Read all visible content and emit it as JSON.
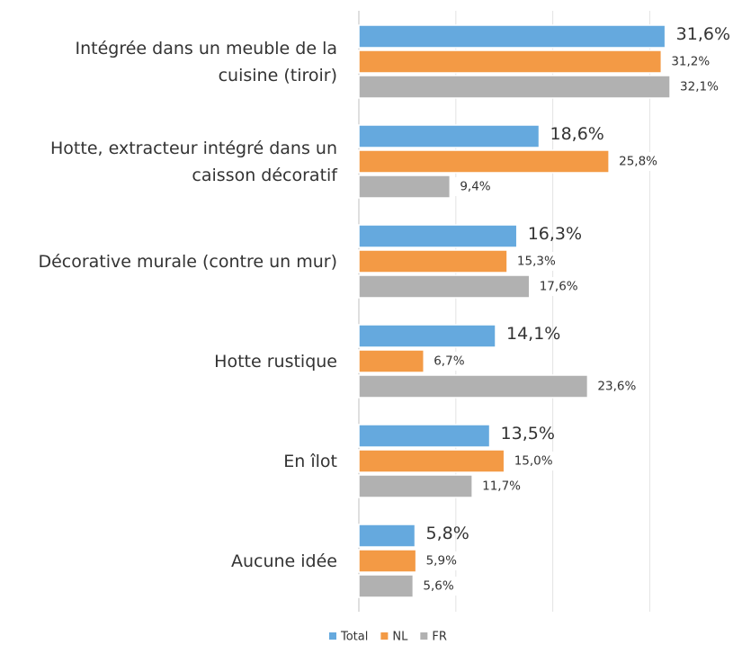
{
  "chart_data": {
    "type": "bar",
    "orientation": "horizontal",
    "categories": [
      "Intégrée dans un meuble de la\ncuisine (tiroir)",
      "Hotte, extracteur intégré dans un\ncaisson décoratif",
      "Décorative murale (contre un mur)",
      "Hotte rustique",
      "En îlot",
      "Aucune idée"
    ],
    "series": [
      {
        "name": "Total",
        "color": "#65a9de",
        "values": [
          31.6,
          18.6,
          16.3,
          14.1,
          13.5,
          5.8
        ],
        "value_labels": [
          "31,6%",
          "18,6%",
          "16,3%",
          "14,1%",
          "13,5%",
          "5,8%"
        ]
      },
      {
        "name": "NL",
        "color": "#f39a45",
        "values": [
          31.2,
          25.8,
          15.3,
          6.7,
          15.0,
          5.9
        ],
        "value_labels": [
          "31,2%",
          "25,8%",
          "15,3%",
          "6,7%",
          "15,0%",
          "5,9%"
        ]
      },
      {
        "name": "FR",
        "color": "#b1b1b1",
        "values": [
          32.1,
          9.4,
          17.6,
          23.6,
          11.7,
          5.6
        ],
        "value_labels": [
          "32,1%",
          "9,4%",
          "17,6%",
          "23,6%",
          "11,7%",
          "5,6%"
        ]
      }
    ],
    "xlim": [
      0,
      35
    ],
    "xticks": [
      0,
      10,
      20,
      30
    ],
    "grid": true,
    "legend": "bottom"
  }
}
